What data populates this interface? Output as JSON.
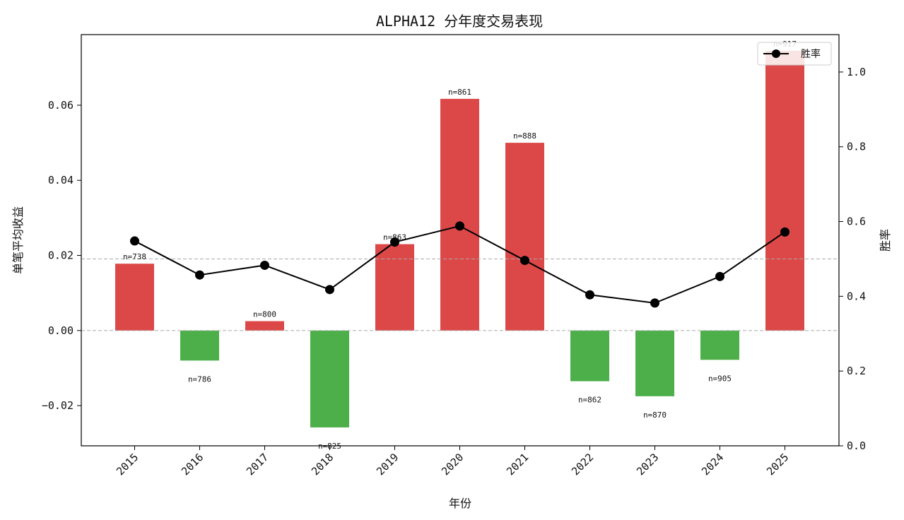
{
  "chart_data": {
    "type": "bar",
    "title": "ALPHA12 分年度交易表现",
    "xlabel": "年份",
    "ylabel": "单笔平均收益",
    "y2label": "胜率",
    "categories": [
      "2015",
      "2016",
      "2017",
      "2018",
      "2019",
      "2020",
      "2021",
      "2022",
      "2023",
      "2024",
      "2025"
    ],
    "series": [
      {
        "kind": "bar",
        "values": [
          0.0178,
          -0.008,
          0.0025,
          -0.0258,
          0.023,
          0.0617,
          0.05,
          -0.0135,
          -0.0175,
          -0.0078,
          0.0745
        ],
        "labels": [
          "n=738",
          "n=786",
          "n=800",
          "n=825",
          "n=863",
          "n=861",
          "n=888",
          "n=862",
          "n=870",
          "n=905",
          "n=917"
        ],
        "color_positive": "#dc4848",
        "color_negative": "#4daf4a"
      },
      {
        "kind": "line",
        "name": "胜率",
        "axis": "right",
        "values": [
          0.548,
          0.457,
          0.483,
          0.418,
          0.545,
          0.588,
          0.496,
          0.404,
          0.382,
          0.453,
          0.572
        ],
        "color": "#000000"
      }
    ],
    "ylim": [
      -0.0307,
      0.0788
    ],
    "yticks": [
      -0.02,
      0.0,
      0.02,
      0.04,
      0.06
    ],
    "ytick_labels": [
      "−0.02",
      "0.00",
      "0.02",
      "0.04",
      "0.06"
    ],
    "y2lim": [
      0.0,
      1.1
    ],
    "y2ticks": [
      0.0,
      0.2,
      0.4,
      0.6,
      0.8,
      1.0
    ],
    "y2tick_labels": [
      "0.0",
      "0.2",
      "0.4",
      "0.6",
      "0.8",
      "1.0"
    ],
    "reference_lines": [
      0.0,
      0.5
    ],
    "legend_position": "top-right",
    "grid": false
  }
}
